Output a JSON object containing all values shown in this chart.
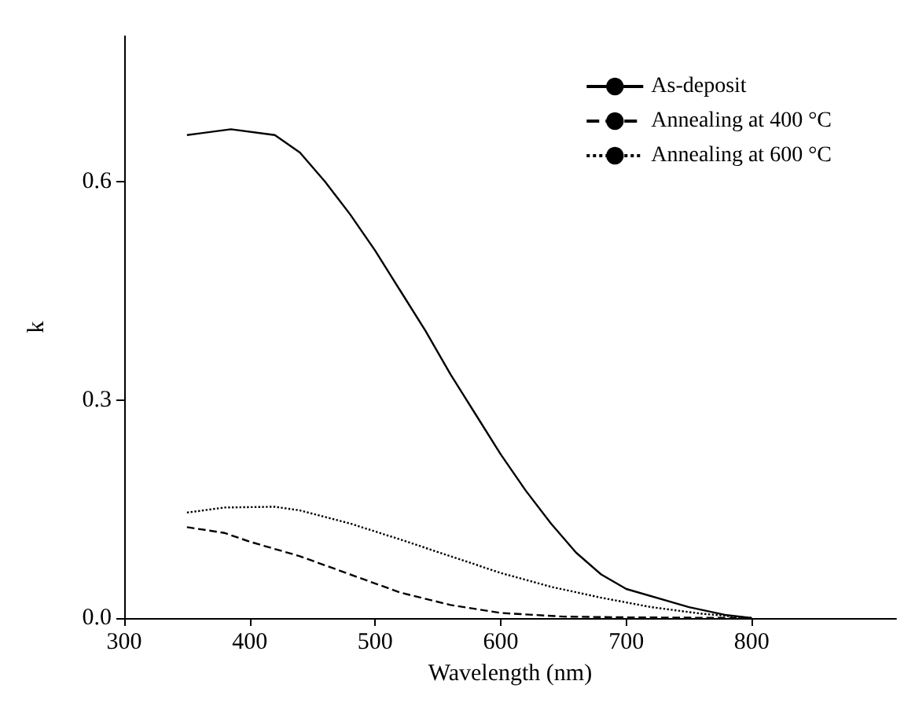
{
  "chart_data": {
    "type": "line",
    "xlabel": "Wavelength (nm)",
    "ylabel": "k",
    "xlim": [
      300,
      915
    ],
    "ylim": [
      0,
      0.8
    ],
    "xticks": [
      300,
      400,
      500,
      600,
      700,
      800
    ],
    "yticks": [
      {
        "value": 0,
        "label": "0.0"
      },
      {
        "value": 0.3,
        "label": "0.3"
      },
      {
        "value": 0.6,
        "label": "0.6"
      }
    ],
    "grid": false,
    "legend": "top right",
    "marker": "none",
    "series": [
      {
        "name": "As-deposit",
        "color": "#000000",
        "line_style": "solid",
        "x": [
          350,
          385,
          420,
          440,
          460,
          480,
          500,
          520,
          540,
          560,
          580,
          600,
          620,
          640,
          660,
          680,
          700,
          750,
          780,
          800
        ],
        "values": [
          0.664,
          0.672,
          0.664,
          0.64,
          0.6,
          0.555,
          0.505,
          0.45,
          0.395,
          0.335,
          0.28,
          0.225,
          0.175,
          0.13,
          0.09,
          0.06,
          0.04,
          0.015,
          0.004,
          0
        ]
      },
      {
        "name": "Annealing at 400 °C",
        "color": "#000000",
        "line_style": "dashed",
        "x": [
          350,
          380,
          400,
          440,
          480,
          520,
          560,
          600,
          650,
          700,
          800
        ],
        "values": [
          0.125,
          0.117,
          0.105,
          0.085,
          0.06,
          0.035,
          0.018,
          0.007,
          0.002,
          0.001,
          0
        ]
      },
      {
        "name": "Annealing at 600 °C",
        "color": "#000000",
        "line_style": "dotted",
        "x": [
          350,
          380,
          420,
          440,
          480,
          520,
          560,
          600,
          640,
          680,
          720,
          760,
          800
        ],
        "values": [
          0.145,
          0.152,
          0.153,
          0.148,
          0.13,
          0.108,
          0.085,
          0.062,
          0.043,
          0.028,
          0.015,
          0.006,
          0
        ]
      }
    ]
  }
}
